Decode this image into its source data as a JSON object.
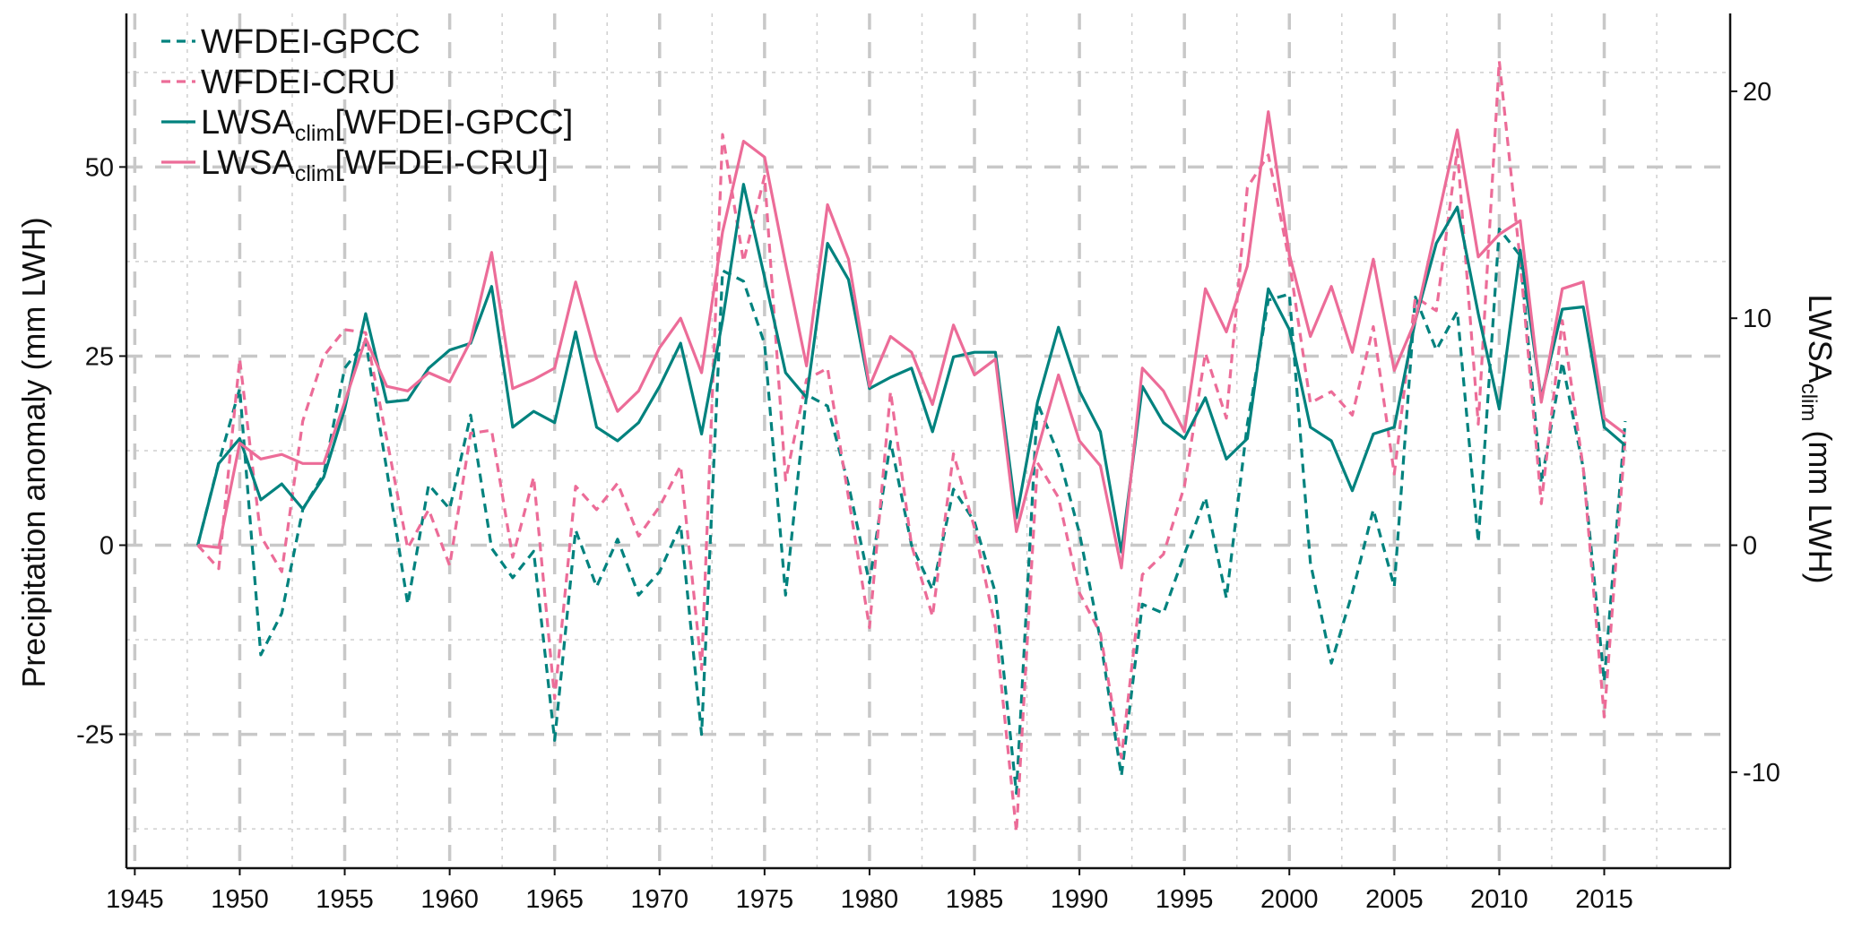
{
  "chart_data": {
    "type": "line",
    "x": [
      1948,
      1949,
      1950,
      1951,
      1952,
      1953,
      1954,
      1955,
      1956,
      1957,
      1958,
      1959,
      1960,
      1961,
      1962,
      1963,
      1964,
      1965,
      1966,
      1967,
      1968,
      1969,
      1970,
      1971,
      1972,
      1973,
      1974,
      1975,
      1976,
      1977,
      1978,
      1979,
      1980,
      1981,
      1982,
      1983,
      1984,
      1985,
      1986,
      1987,
      1988,
      1989,
      1990,
      1991,
      1992,
      1993,
      1994,
      1995,
      1996,
      1997,
      1998,
      1999,
      2000,
      2001,
      2002,
      2003,
      2004,
      2005,
      2006,
      2007,
      2008,
      2009,
      2010,
      2011,
      2012,
      2013,
      2014,
      2015,
      2016
    ],
    "xlim": [
      1944.6,
      2021
    ],
    "x_ticks": [
      "1945",
      "1950",
      "1955",
      "1960",
      "1965",
      "1970",
      "1975",
      "1980",
      "1985",
      "1990",
      "1995",
      "2000",
      "2005",
      "2010",
      "2015"
    ],
    "ylabel": "Precipitation anomaly (mm LWH)",
    "ylim": [
      -42.7,
      70.3
    ],
    "y_ticks": [
      "-25",
      "0",
      "25",
      "50"
    ],
    "y2label": {
      "main": "LWSA",
      "sub": "clim",
      "rest": " (mm LWH)"
    },
    "y2lim": [
      -14.23,
      23.43
    ],
    "y2_ticks": [
      "-10",
      "0",
      "10",
      "20"
    ],
    "grid": true,
    "legend_position": "top-left",
    "series": [
      {
        "name": "WFDEI-GPCC",
        "label": {
          "main": "WFDEI-GPCC",
          "sub": "",
          "rest": ""
        },
        "axis": "left",
        "style": "dashed",
        "color": "#00827e",
        "values": [
          0,
          10.9,
          20.7,
          -14.5,
          -9,
          4.7,
          9.4,
          23.4,
          27,
          10,
          -7.8,
          8,
          4.8,
          17.2,
          -0.4,
          -4.3,
          -0.8,
          -25.8,
          2,
          -5.5,
          0.8,
          -6.6,
          -3.5,
          2.7,
          -25,
          36.3,
          34.9,
          26.6,
          -6.6,
          19.9,
          18.4,
          8,
          -5,
          13.7,
          0,
          -5.9,
          7.4,
          3.1,
          -6.3,
          -32.8,
          18.8,
          12,
          1.6,
          -12.5,
          -30.5,
          -7.8,
          -9,
          -1.2,
          6.3,
          -7,
          16,
          32.4,
          33.2,
          -2.3,
          -15.6,
          -6.3,
          4.7,
          -5.5,
          32.8,
          25.8,
          30.9,
          0.4,
          41.8,
          38.3,
          8.2,
          24.2,
          10.2,
          -18,
          16.4
        ]
      },
      {
        "name": "WFDEI-CRU",
        "label": {
          "main": "WFDEI-CRU",
          "sub": "",
          "rest": ""
        },
        "axis": "left",
        "style": "dashed",
        "color": "#ec6c98",
        "values": [
          0,
          -3.1,
          24.6,
          1.2,
          -3.5,
          16.4,
          25,
          28.5,
          28.1,
          14.1,
          -0.4,
          4.7,
          -2.7,
          14.8,
          15.2,
          -1.6,
          9,
          -20.3,
          7.8,
          4.7,
          8.2,
          1.2,
          5.1,
          10.5,
          -16.4,
          54.3,
          37.5,
          48.8,
          8.6,
          21.9,
          23.4,
          6.3,
          -10.9,
          20.3,
          0,
          -9.4,
          12.1,
          2.3,
          -10.9,
          -37.9,
          10.9,
          6.3,
          -6.3,
          -11.7,
          -28.1,
          -3.9,
          -1.2,
          7.8,
          25.4,
          16.8,
          47.3,
          51.6,
          37.5,
          18.8,
          20.3,
          17.2,
          28.9,
          9.4,
          32.8,
          31,
          52.3,
          16,
          64,
          37.5,
          5.5,
          29.7,
          10.2,
          -22.7,
          14.1
        ]
      },
      {
        "name": "LWSAclim[WFDEI-GPCC]",
        "label": {
          "main": "LWSA",
          "sub": "clim",
          "rest": "[WFDEI-GPCC]"
        },
        "axis": "right",
        "style": "solid",
        "color": "#00827e",
        "values": [
          0,
          3.6,
          4.7,
          2.0,
          2.7,
          1.6,
          3.0,
          6.0,
          10.2,
          6.3,
          6.4,
          7.8,
          8.6,
          8.9,
          11.4,
          5.2,
          5.9,
          5.4,
          9.4,
          5.2,
          4.6,
          5.4,
          7.0,
          8.9,
          4.9,
          9.9,
          15.9,
          11.8,
          7.6,
          6.5,
          13.3,
          11.7,
          6.9,
          7.4,
          7.8,
          5.0,
          8.3,
          8.5,
          8.5,
          1.2,
          6.3,
          9.6,
          6.8,
          5.0,
          -0.3,
          7.0,
          5.4,
          4.7,
          6.5,
          3.8,
          4.7,
          11.3,
          9.5,
          5.2,
          4.6,
          2.4,
          4.9,
          5.2,
          9.9,
          13.3,
          14.9,
          10.2,
          6.0,
          13.0,
          6.5,
          10.4,
          10.5,
          5.2,
          4.4
        ]
      },
      {
        "name": "LWSAclim[WFDEI-CRU]",
        "label": {
          "main": "LWSA",
          "sub": "clim",
          "rest": "[WFDEI-CRU]"
        },
        "axis": "right",
        "style": "solid",
        "color": "#ec6c98",
        "values": [
          0,
          -0.1,
          4.5,
          3.8,
          4.0,
          3.6,
          3.6,
          6.3,
          9.1,
          7.0,
          6.8,
          7.6,
          7.2,
          9.0,
          12.9,
          6.9,
          7.3,
          7.8,
          11.6,
          8.2,
          5.9,
          6.8,
          8.7,
          10.0,
          7.6,
          13.8,
          17.8,
          17.1,
          12.4,
          7.9,
          15.0,
          12.6,
          7.0,
          9.2,
          8.5,
          6.2,
          9.7,
          7.5,
          8.2,
          0.6,
          4.2,
          7.5,
          4.6,
          3.5,
          -1.0,
          7.8,
          6.8,
          5.0,
          11.3,
          9.4,
          12.3,
          19.1,
          12.8,
          9.2,
          11.4,
          8.5,
          12.6,
          7.7,
          9.9,
          14.1,
          18.3,
          12.7,
          13.7,
          14.3,
          6.3,
          11.3,
          11.6,
          5.6,
          4.9
        ]
      }
    ]
  }
}
